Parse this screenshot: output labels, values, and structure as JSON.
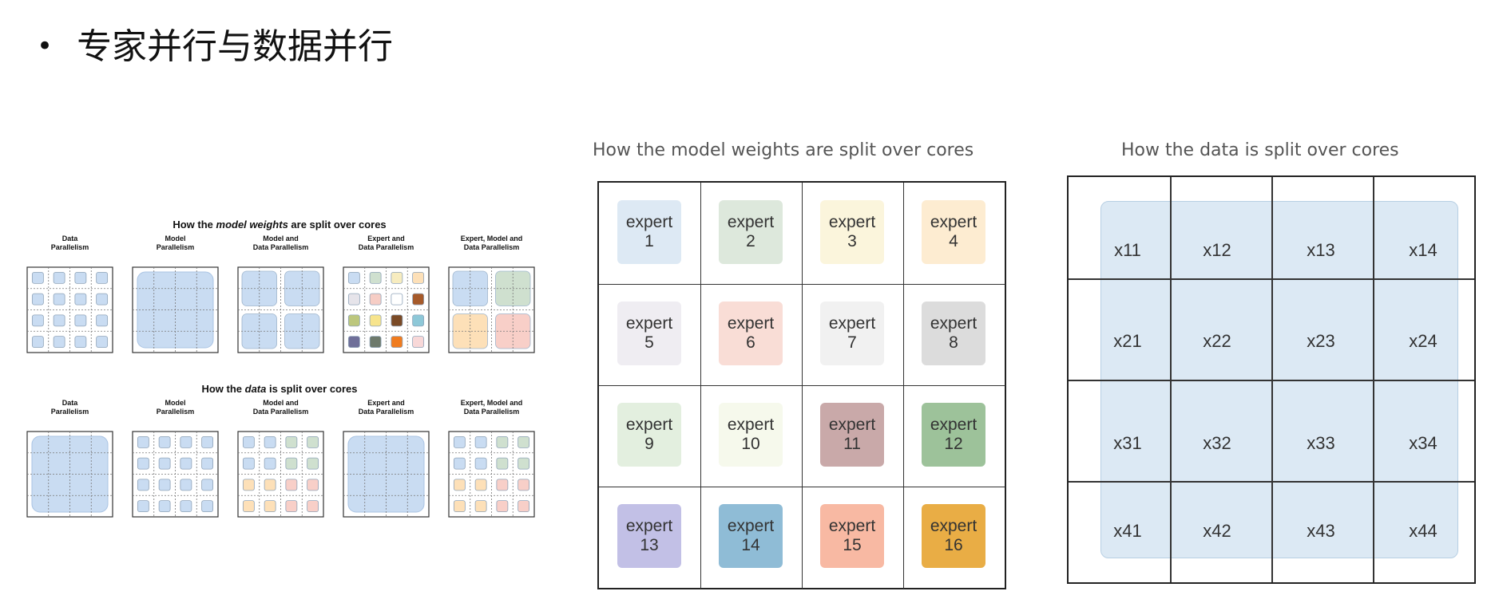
{
  "heading": "专家并行与数据并行",
  "left_figure": {
    "rows": [
      {
        "title_parts": [
          "How the ",
          "model weights",
          " are split over cores"
        ],
        "panels": [
          {
            "label": "Data Parallelism",
            "pattern": "cells",
            "colors": [
              "#c9dcf2",
              "#c9dcf2",
              "#c9dcf2",
              "#c9dcf2",
              "#c9dcf2",
              "#c9dcf2",
              "#c9dcf2",
              "#c9dcf2",
              "#c9dcf2",
              "#c9dcf2",
              "#c9dcf2",
              "#c9dcf2",
              "#c9dcf2",
              "#c9dcf2",
              "#c9dcf2",
              "#c9dcf2"
            ]
          },
          {
            "label": "Model Parallelism",
            "pattern": "full",
            "colors": [
              "#c9dcf2"
            ]
          },
          {
            "label": "Model and Data Parallelism",
            "pattern": "quads",
            "colors": [
              "#c9dcf2",
              "#c9dcf2",
              "#c9dcf2",
              "#c9dcf2"
            ]
          },
          {
            "label": "Expert and Data Parallelism",
            "pattern": "cells",
            "colors": [
              "#c9dcf2",
              "#cfe0cf",
              "#f7ecbf",
              "#fde0b8",
              "#e6e4ea",
              "#f6cdc5",
              "#ffffff",
              "#a65a2a",
              "#bcc77d",
              "#f7e48c",
              "#7a4a26",
              "#8ec8d8",
              "#6f6f99",
              "#6e7a6b",
              "#f07c1f",
              "#f8d8d8"
            ]
          },
          {
            "label": "Expert, Model and Data Parallelism",
            "pattern": "quads",
            "colors": [
              "#c9dcf2",
              "#cfe0cf",
              "#fde0b8",
              "#f8cfc8"
            ]
          }
        ]
      },
      {
        "title_parts": [
          "How the ",
          "data",
          " is split over cores"
        ],
        "panels": [
          {
            "label": "Data Parallelism",
            "pattern": "full",
            "colors": [
              "#c9dcf2"
            ]
          },
          {
            "label": "Model Parallelism",
            "pattern": "cells",
            "colors": [
              "#c9dcf2",
              "#c9dcf2",
              "#c9dcf2",
              "#c9dcf2",
              "#c9dcf2",
              "#c9dcf2",
              "#c9dcf2",
              "#c9dcf2",
              "#c9dcf2",
              "#c9dcf2",
              "#c9dcf2",
              "#c9dcf2",
              "#c9dcf2",
              "#c9dcf2",
              "#c9dcf2",
              "#c9dcf2"
            ]
          },
          {
            "label": "Model and Data Parallelism",
            "pattern": "cells",
            "colors": [
              "#c9dcf2",
              "#c9dcf2",
              "#cfe0cf",
              "#cfe0cf",
              "#c9dcf2",
              "#c9dcf2",
              "#cfe0cf",
              "#cfe0cf",
              "#fde0b8",
              "#fde0b8",
              "#f8cfc8",
              "#f8cfc8",
              "#fde0b8",
              "#fde0b8",
              "#f8cfc8",
              "#f8cfc8"
            ]
          },
          {
            "label": "Expert and Data Parallelism",
            "pattern": "full",
            "colors": [
              "#c9dcf2"
            ]
          },
          {
            "label": "Expert, Model and Data Parallelism",
            "pattern": "cells",
            "colors": [
              "#c9dcf2",
              "#c9dcf2",
              "#cfe0cf",
              "#cfe0cf",
              "#c9dcf2",
              "#c9dcf2",
              "#cfe0cf",
              "#cfe0cf",
              "#fde0b8",
              "#fde0b8",
              "#f8cfc8",
              "#f8cfc8",
              "#fde0b8",
              "#fde0b8",
              "#f8cfc8",
              "#f8cfc8"
            ]
          }
        ]
      }
    ]
  },
  "weights_panel": {
    "title": "How the model weights are split over cores",
    "experts": [
      {
        "label": "expert",
        "num": "1",
        "color": "#dde9f4"
      },
      {
        "label": "expert",
        "num": "2",
        "color": "#dde8dc"
      },
      {
        "label": "expert",
        "num": "3",
        "color": "#fbf5dc"
      },
      {
        "label": "expert",
        "num": "4",
        "color": "#fdecd1"
      },
      {
        "label": "expert",
        "num": "5",
        "color": "#efedf2"
      },
      {
        "label": "expert",
        "num": "6",
        "color": "#f9ddd6"
      },
      {
        "label": "expert",
        "num": "7",
        "color": "#f1f1f1"
      },
      {
        "label": "expert",
        "num": "8",
        "color": "#dcdcdc"
      },
      {
        "label": "expert",
        "num": "9",
        "color": "#e3efdf"
      },
      {
        "label": "expert",
        "num": "10",
        "color": "#f6f9ec"
      },
      {
        "label": "expert",
        "num": "11",
        "color": "#c9a9a9"
      },
      {
        "label": "expert",
        "num": "12",
        "color": "#9dc29a"
      },
      {
        "label": "expert",
        "num": "13",
        "color": "#c2c0e6"
      },
      {
        "label": "expert",
        "num": "14",
        "color": "#8fbcd6"
      },
      {
        "label": "expert",
        "num": "15",
        "color": "#f8b9a3"
      },
      {
        "label": "expert",
        "num": "16",
        "color": "#e9ad45"
      }
    ]
  },
  "data_panel": {
    "title": "How the data is split over cores",
    "labels": [
      "x11",
      "x12",
      "x13",
      "x14",
      "x21",
      "x22",
      "x23",
      "x24",
      "x31",
      "x32",
      "x33",
      "x34",
      "x41",
      "x42",
      "x43",
      "x44"
    ]
  }
}
